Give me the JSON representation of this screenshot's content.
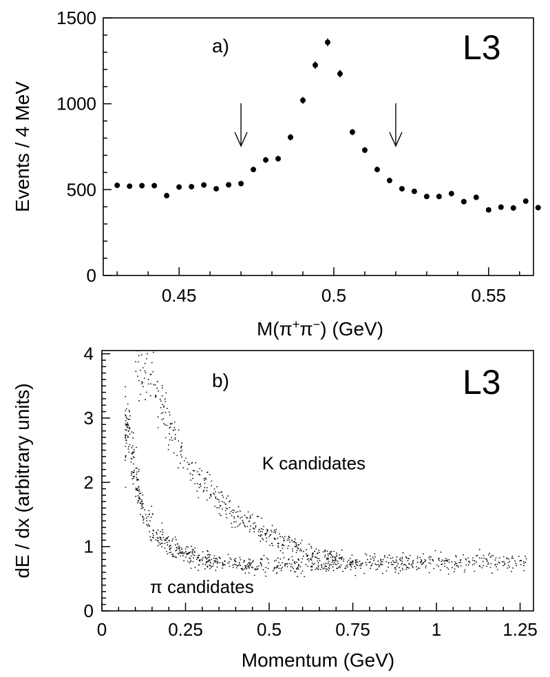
{
  "chart_data": [
    {
      "type": "scatter",
      "panel_label": "a)",
      "logo": "L3",
      "ylabel": "Events / 4 MeV",
      "xlabel_parts": {
        "pre": "M(π",
        "sup1": "+",
        "mid": "π",
        "sup2": "−",
        "post": ")  (GeV)"
      },
      "xlim": [
        0.4255,
        0.5645
      ],
      "ylim": [
        0,
        1500
      ],
      "xticks": [
        {
          "value": 0.45,
          "label": "0.45"
        },
        {
          "value": 0.5,
          "label": "0.5"
        },
        {
          "value": 0.55,
          "label": "0.55"
        }
      ],
      "yticks": [
        {
          "value": 0,
          "label": "0"
        },
        {
          "value": 500,
          "label": "500"
        },
        {
          "value": 1000,
          "label": "1000"
        },
        {
          "value": 1500,
          "label": "1500"
        }
      ],
      "arrows_at_x": [
        0.47,
        0.52
      ],
      "points": [
        {
          "x": 0.43,
          "y": 525,
          "err": 15
        },
        {
          "x": 0.434,
          "y": 520,
          "err": 15
        },
        {
          "x": 0.438,
          "y": 523,
          "err": 15
        },
        {
          "x": 0.442,
          "y": 523,
          "err": 15
        },
        {
          "x": 0.446,
          "y": 465,
          "err": 15
        },
        {
          "x": 0.45,
          "y": 515,
          "err": 15
        },
        {
          "x": 0.454,
          "y": 517,
          "err": 15
        },
        {
          "x": 0.458,
          "y": 527,
          "err": 15
        },
        {
          "x": 0.462,
          "y": 505,
          "err": 15
        },
        {
          "x": 0.466,
          "y": 528,
          "err": 15
        },
        {
          "x": 0.47,
          "y": 535,
          "err": 15
        },
        {
          "x": 0.474,
          "y": 617,
          "err": 16
        },
        {
          "x": 0.478,
          "y": 673,
          "err": 17
        },
        {
          "x": 0.482,
          "y": 680,
          "err": 17
        },
        {
          "x": 0.486,
          "y": 805,
          "err": 18
        },
        {
          "x": 0.49,
          "y": 1020,
          "err": 20
        },
        {
          "x": 0.494,
          "y": 1225,
          "err": 22
        },
        {
          "x": 0.498,
          "y": 1358,
          "err": 23
        },
        {
          "x": 0.502,
          "y": 1175,
          "err": 22
        },
        {
          "x": 0.506,
          "y": 835,
          "err": 18
        },
        {
          "x": 0.51,
          "y": 730,
          "err": 17
        },
        {
          "x": 0.514,
          "y": 617,
          "err": 16
        },
        {
          "x": 0.518,
          "y": 553,
          "err": 15
        },
        {
          "x": 0.522,
          "y": 505,
          "err": 15
        },
        {
          "x": 0.526,
          "y": 490,
          "err": 15
        },
        {
          "x": 0.53,
          "y": 460,
          "err": 14
        },
        {
          "x": 0.534,
          "y": 460,
          "err": 14
        },
        {
          "x": 0.538,
          "y": 477,
          "err": 14
        },
        {
          "x": 0.542,
          "y": 430,
          "err": 14
        },
        {
          "x": 0.546,
          "y": 455,
          "err": 14
        },
        {
          "x": 0.55,
          "y": 382,
          "err": 13
        },
        {
          "x": 0.554,
          "y": 398,
          "err": 13
        },
        {
          "x": 0.558,
          "y": 393,
          "err": 13
        },
        {
          "x": 0.562,
          "y": 433,
          "err": 14
        },
        {
          "x": 0.566,
          "y": 395,
          "err": 13
        }
      ]
    },
    {
      "type": "scatter",
      "panel_label": "b)",
      "logo": "L3",
      "xlabel": "Momentum  (GeV)",
      "ylabel": "dE / dx (arbitrary units)",
      "xlim": [
        0,
        1.29
      ],
      "ylim": [
        0,
        4.05
      ],
      "xticks": [
        {
          "value": 0,
          "label": "0"
        },
        {
          "value": 0.25,
          "label": "0.25"
        },
        {
          "value": 0.5,
          "label": "0.5"
        },
        {
          "value": 0.75,
          "label": "0.75"
        },
        {
          "value": 1,
          "label": "1"
        },
        {
          "value": 1.25,
          "label": "1.25"
        }
      ],
      "yticks": [
        {
          "value": 0,
          "label": "0"
        },
        {
          "value": 1,
          "label": "1"
        },
        {
          "value": 2,
          "label": "2"
        },
        {
          "value": 3,
          "label": "3"
        },
        {
          "value": 4,
          "label": "4"
        }
      ],
      "annotations": [
        {
          "text": "K candidates",
          "x": 0.52,
          "y": 2.2
        },
        {
          "text": "π candidates",
          "x": 0.37,
          "y": 0.28
        }
      ],
      "pion_band": {
        "p_range": [
          0.07,
          1.27
        ],
        "count": 900,
        "points": [
          [
            0.08,
            2.8
          ],
          [
            0.09,
            2.5
          ],
          [
            0.1,
            2.05
          ],
          [
            0.11,
            1.85
          ],
          [
            0.12,
            1.6
          ],
          [
            0.15,
            1.25
          ],
          [
            0.2,
            1.0
          ],
          [
            0.25,
            0.88
          ],
          [
            0.3,
            0.78
          ],
          [
            0.4,
            0.72
          ],
          [
            0.5,
            0.7
          ],
          [
            0.6,
            0.72
          ],
          [
            0.75,
            0.74
          ],
          [
            1.0,
            0.75
          ],
          [
            1.25,
            0.77
          ]
        ]
      },
      "kaon_band": {
        "p_range": [
          0.1,
          0.72
        ],
        "count": 420,
        "points": [
          [
            0.1,
            4.0
          ],
          [
            0.15,
            3.55
          ],
          [
            0.2,
            2.9
          ],
          [
            0.25,
            2.3
          ],
          [
            0.3,
            1.95
          ],
          [
            0.35,
            1.7
          ],
          [
            0.4,
            1.48
          ],
          [
            0.45,
            1.32
          ],
          [
            0.5,
            1.17
          ],
          [
            0.55,
            1.05
          ],
          [
            0.6,
            0.95
          ],
          [
            0.65,
            0.88
          ],
          [
            0.72,
            0.82
          ]
        ]
      }
    }
  ]
}
